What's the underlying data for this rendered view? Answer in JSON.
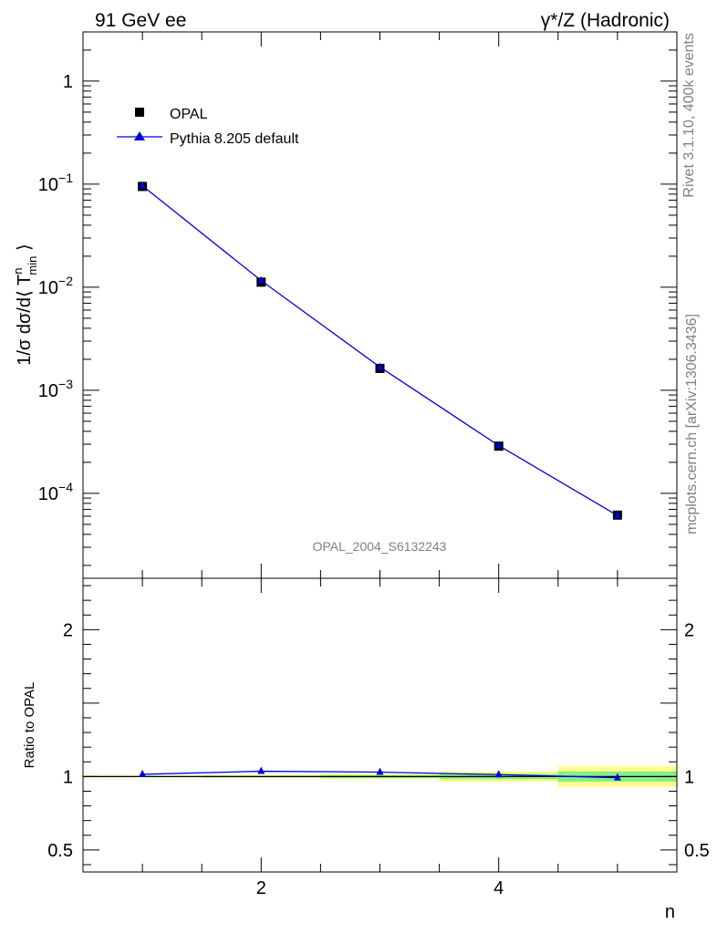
{
  "header": {
    "left_title": "91 GeV ee",
    "right_title": "γ*/Z (Hadronic)",
    "watermark": "OPAL_2004_S6132243"
  },
  "side_labels": {
    "rivet": "Rivet 3.1.10,  400k events",
    "mcplots": "mcplots.cern.ch [arXiv:1306.3436]"
  },
  "colors": {
    "data": "#000000",
    "mc": "#0000dd",
    "band_inner": "#88ee88",
    "band_outer": "#ffff88",
    "axis": "#000000"
  },
  "chart_data": [
    {
      "type": "line",
      "scale": "log",
      "ylabel": "1/σ dσ/d⟨ T^n_min ⟩",
      "ylim": [
        1.5e-05,
        3
      ],
      "xlim": [
        0.5,
        5.5
      ],
      "y_ticks": [
        {
          "value": 1,
          "label": "1"
        },
        {
          "value": 0.1,
          "label": "10",
          "exp": "−1"
        },
        {
          "value": 0.01,
          "label": "10",
          "exp": "−2"
        },
        {
          "value": 0.001,
          "label": "10",
          "exp": "−3"
        },
        {
          "value": 0.0001,
          "label": "10",
          "exp": "−4"
        }
      ],
      "legend": [
        {
          "label": "OPAL",
          "marker": "square"
        },
        {
          "label": "Pythia 8.205 default",
          "marker": "triangle"
        }
      ],
      "series": [
        {
          "name": "OPAL",
          "x": [
            1,
            2,
            3,
            4,
            5
          ],
          "values": [
            0.095,
            0.0112,
            0.00163,
            0.000287,
            6.15e-05
          ]
        },
        {
          "name": "Pythia 8.205 default",
          "x": [
            1,
            2,
            3,
            4,
            5
          ],
          "values": [
            0.0965,
            0.0116,
            0.00168,
            0.000291,
            6.1e-05
          ]
        }
      ]
    },
    {
      "type": "line",
      "scale": "linear",
      "ylabel": "Ratio to OPAL",
      "xlabel": "n",
      "ylim": [
        0.35,
        2.35
      ],
      "xlim": [
        0.5,
        5.5
      ],
      "y_ticks": [
        {
          "value": 0.5,
          "label": "0.5"
        },
        {
          "value": 1,
          "label": "1"
        },
        {
          "value": 2,
          "label": "2"
        }
      ],
      "x_ticks": [
        {
          "value": 2,
          "label": "2"
        },
        {
          "value": 4,
          "label": "4"
        }
      ],
      "bands": [
        {
          "x": [
            0.5,
            1.5
          ],
          "inner": 0.004,
          "outer": 0.006
        },
        {
          "x": [
            1.5,
            2.5
          ],
          "inner": 0.006,
          "outer": 0.01
        },
        {
          "x": [
            2.5,
            3.5
          ],
          "inner": 0.01,
          "outer": 0.018
        },
        {
          "x": [
            3.5,
            4.5
          ],
          "inner": 0.018,
          "outer": 0.035
        },
        {
          "x": [
            4.5,
            5.5
          ],
          "inner": 0.035,
          "outer": 0.07
        }
      ],
      "series": [
        {
          "name": "Pythia 8.205 default",
          "x": [
            1,
            2,
            3,
            4,
            5
          ],
          "values": [
            1.015,
            1.036,
            1.03,
            1.013,
            0.992
          ]
        }
      ]
    }
  ]
}
